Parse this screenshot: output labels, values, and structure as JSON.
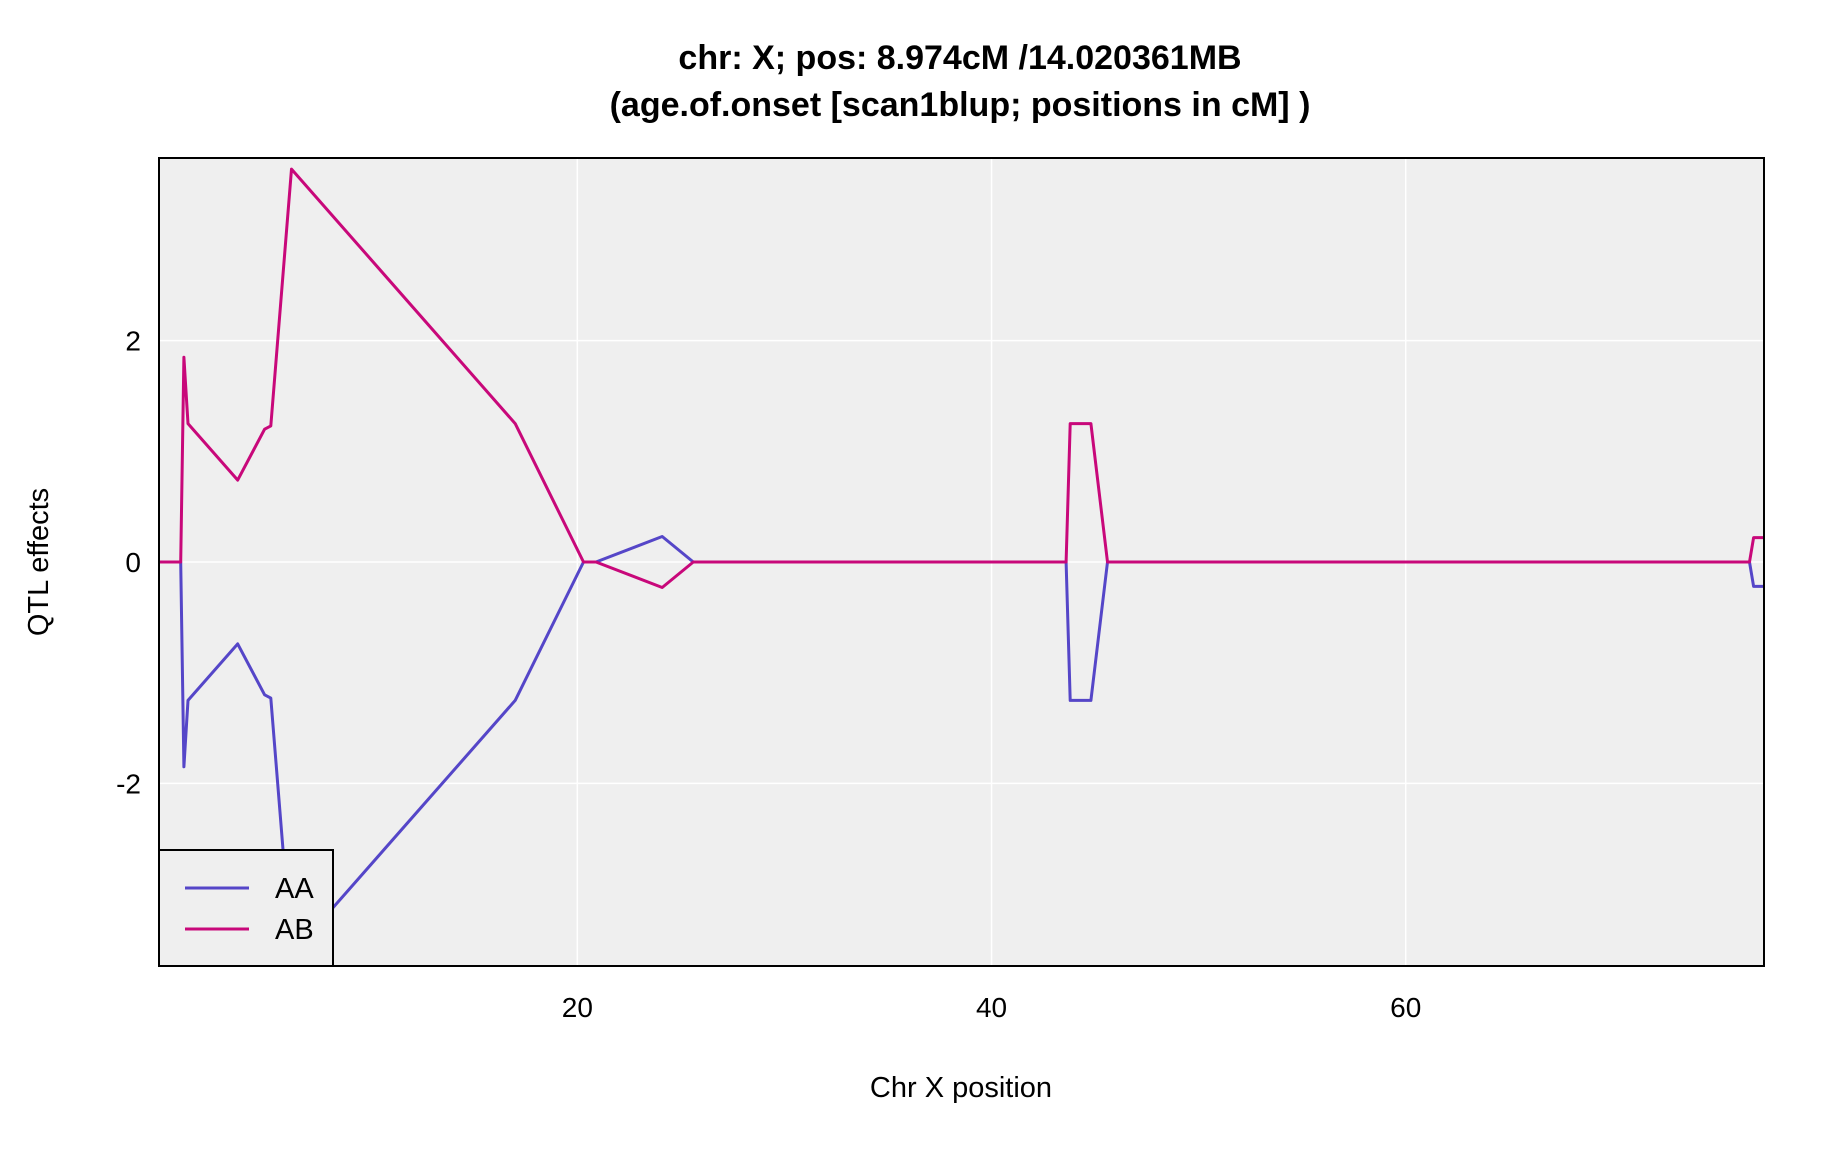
{
  "chart_data": {
    "type": "line",
    "title": "chr: X; pos: 8.974cM /14.020361MB",
    "subtitle": "(age.of.onset [scan1blup; positions in cM] )",
    "xlabel": "Chr X position",
    "ylabel": "QTL effects",
    "xlim": [
      -0.2,
      77.3
    ],
    "ylim": [
      -3.65,
      3.65
    ],
    "xticks": [
      20,
      40,
      60
    ],
    "yticks": [
      -2,
      0,
      2
    ],
    "grid": true,
    "legend_position": "bottom-left",
    "background_color": "#efefef",
    "grid_color": "#ffffff",
    "x": [
      -0.2,
      0.8,
      0.85,
      1.0,
      1.2,
      3.6,
      4.9,
      5.2,
      6.2,
      17.0,
      20.3,
      20.9,
      24.1,
      25.6,
      43.6,
      43.8,
      44.8,
      45.6,
      76.6,
      76.8,
      77.3
    ],
    "series": [
      {
        "name": "AA",
        "color": "#5546c8",
        "values": [
          0,
          0,
          0,
          -1.85,
          -1.25,
          -0.74,
          -1.2,
          -1.23,
          -3.55,
          -1.25,
          0,
          0,
          0.23,
          0,
          0,
          -1.25,
          -1.25,
          0,
          0,
          -0.22,
          -0.22
        ]
      },
      {
        "name": "AB",
        "color": "#c8087a",
        "values": [
          0,
          0,
          0,
          1.85,
          1.25,
          0.74,
          1.2,
          1.23,
          3.55,
          1.25,
          0,
          0,
          -0.23,
          0,
          0,
          1.25,
          1.25,
          0,
          0,
          0.22,
          0.22
        ]
      }
    ]
  }
}
